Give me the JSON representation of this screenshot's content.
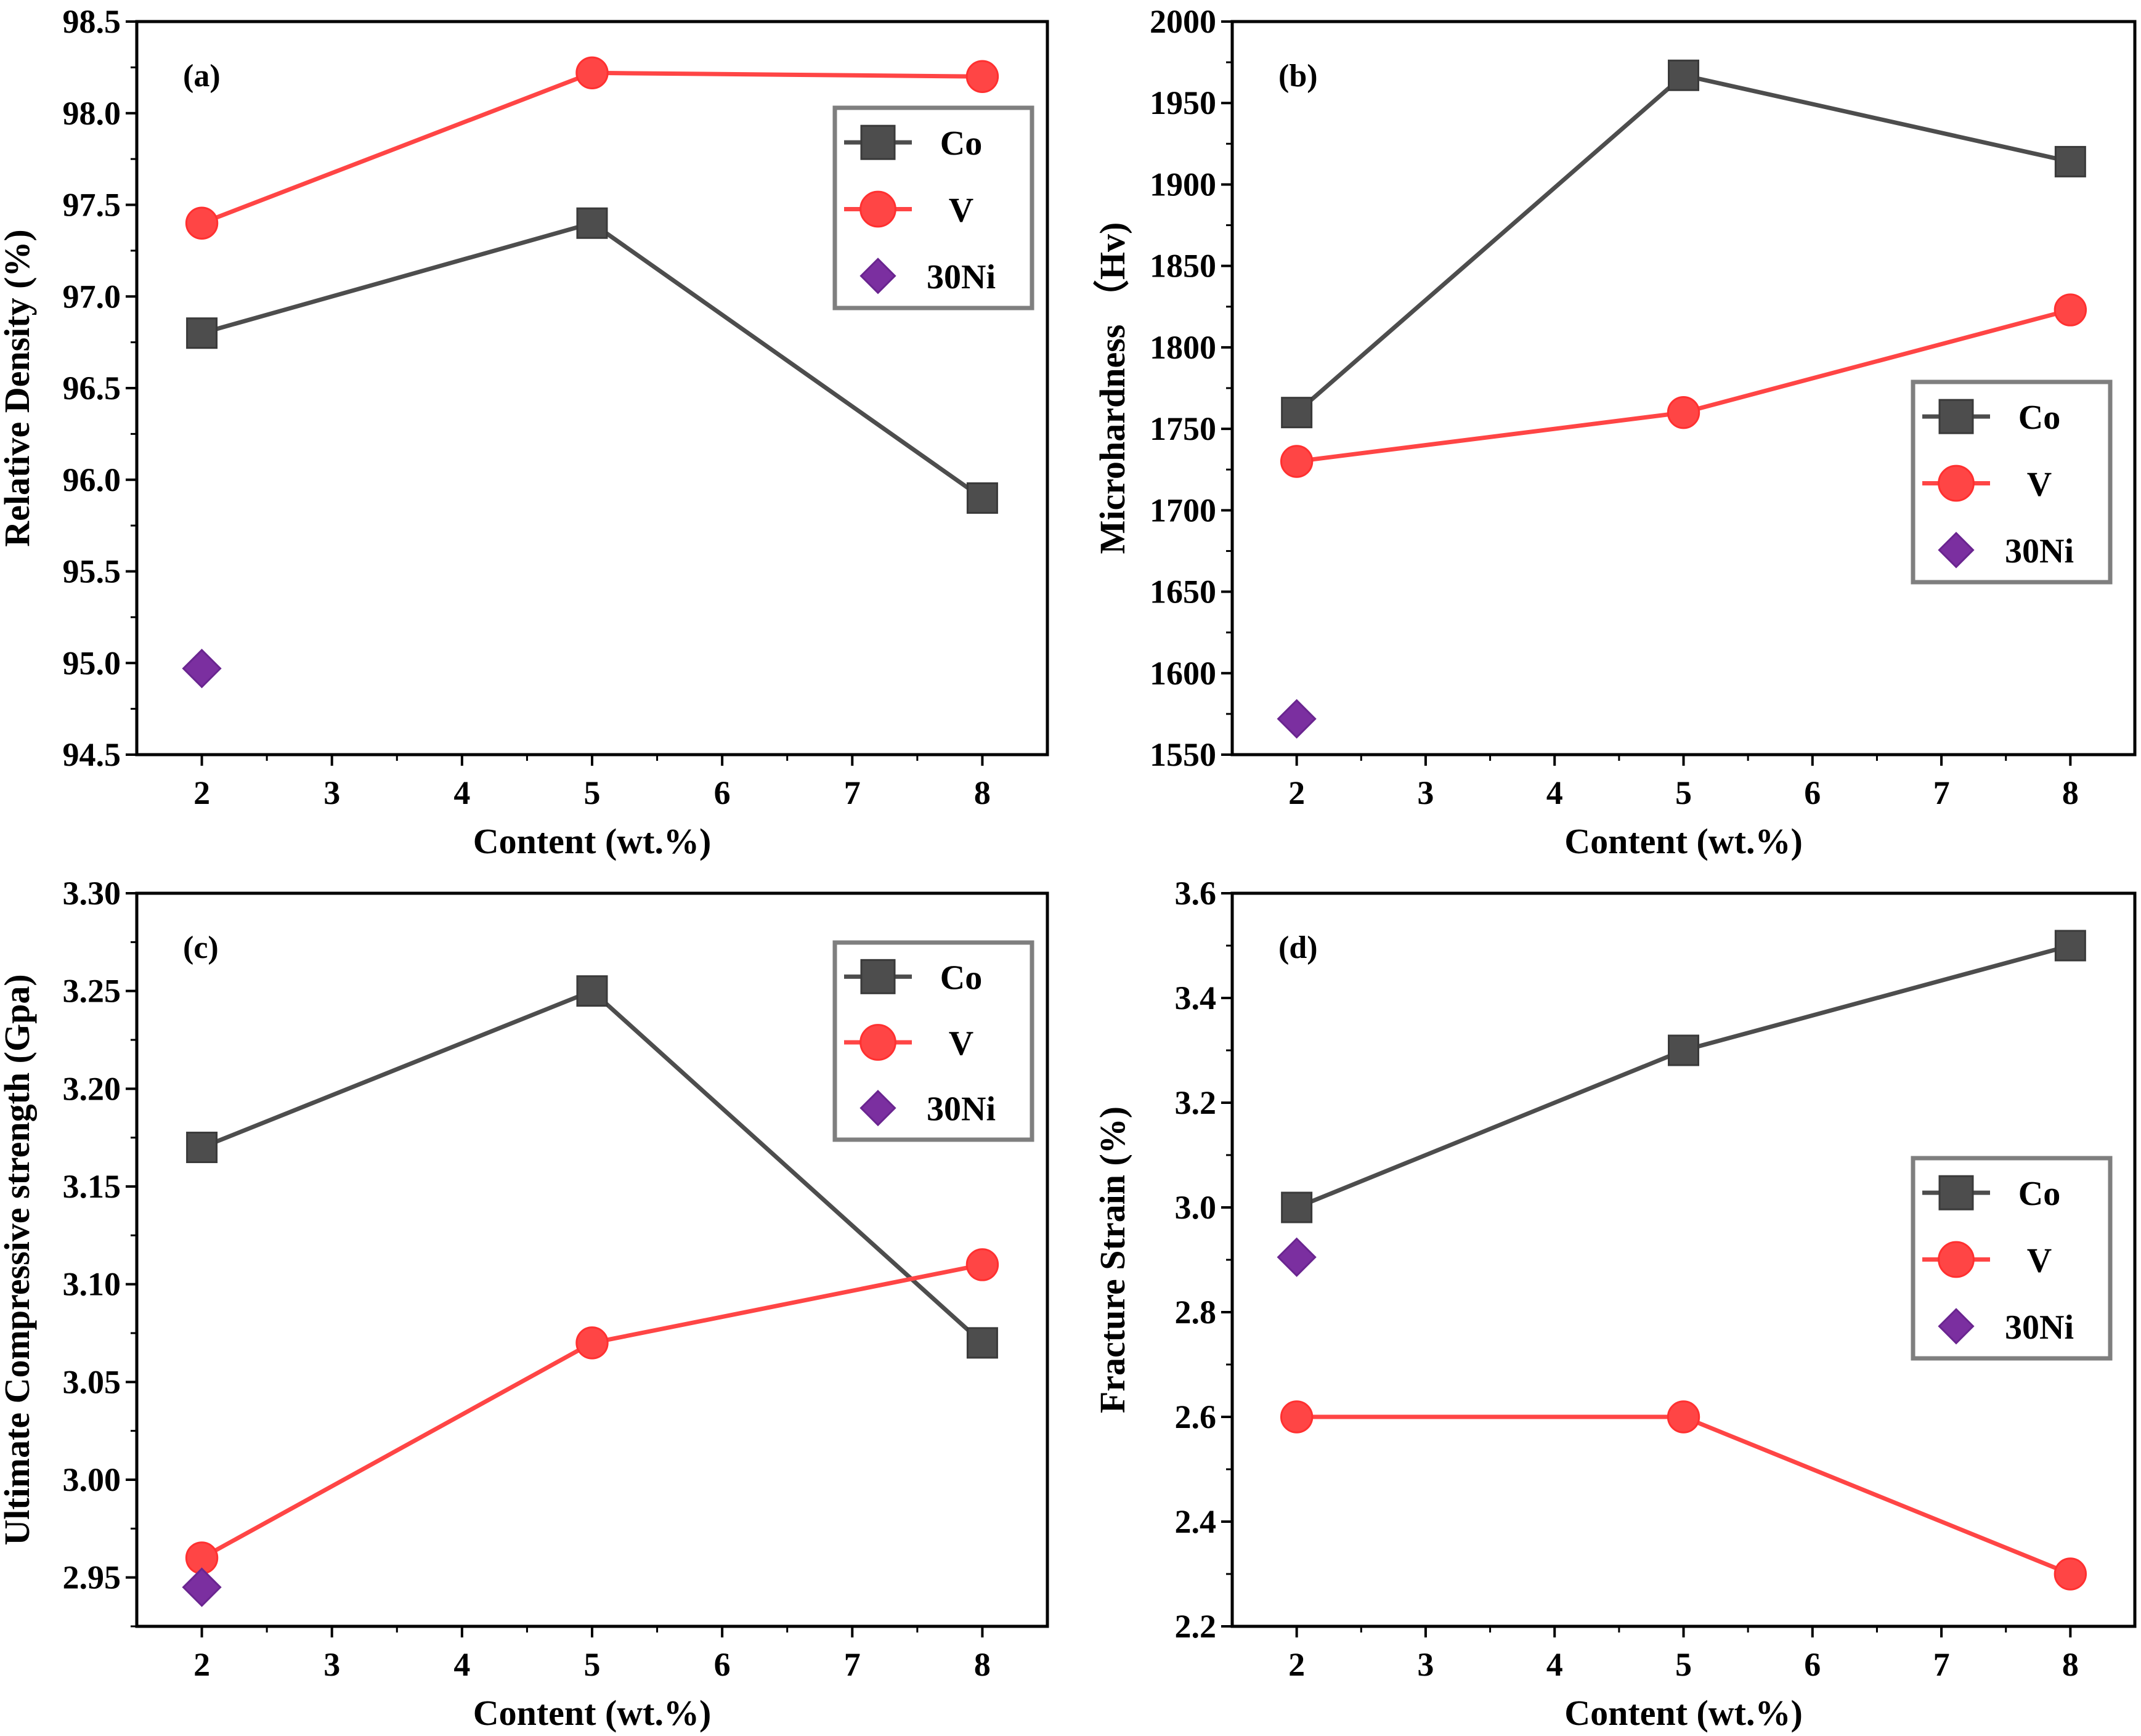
{
  "legend": [
    {
      "name": "Co",
      "color": "#4d4d4d",
      "marker": "square"
    },
    {
      "name": "V",
      "color": "#ff4545",
      "marker": "circle"
    },
    {
      "name": "30Ni",
      "color": "#7b2fa0",
      "marker": "diamond"
    }
  ],
  "chart_data": [
    {
      "type": "line",
      "panel": "(a)",
      "xlabel": "Content (wt.%)",
      "ylabel": "Relative Density (%)",
      "xlim": [
        1.5,
        8.5
      ],
      "ylim": [
        94.5,
        98.5
      ],
      "xticks": [
        2,
        3,
        4,
        5,
        6,
        7,
        8
      ],
      "yticks": [
        94.5,
        95.0,
        95.5,
        96.0,
        96.5,
        97.0,
        97.5,
        98.0,
        98.5
      ],
      "ytick_labels": [
        "94.5",
        "95.0",
        "95.5",
        "96.0",
        "96.5",
        "97.0",
        "97.5",
        "98.0",
        "98.5"
      ],
      "legend_position": "top-right",
      "series": [
        {
          "name": "Co",
          "x": [
            2,
            5,
            8
          ],
          "values": [
            96.8,
            97.4,
            95.9
          ]
        },
        {
          "name": "V",
          "x": [
            2,
            5,
            8
          ],
          "values": [
            97.4,
            98.22,
            98.2
          ]
        },
        {
          "name": "30Ni",
          "x": [
            2
          ],
          "values": [
            94.97
          ]
        }
      ]
    },
    {
      "type": "line",
      "panel": "(b)",
      "xlabel": "Content (wt.%)",
      "ylabel": "Microhardness （Hv)",
      "xlim": [
        1.5,
        8.5
      ],
      "ylim": [
        1550,
        2000
      ],
      "xticks": [
        2,
        3,
        4,
        5,
        6,
        7,
        8
      ],
      "yticks": [
        1550,
        1600,
        1650,
        1700,
        1750,
        1800,
        1850,
        1900,
        1950,
        2000
      ],
      "ytick_labels": [
        "1550",
        "1600",
        "1650",
        "1700",
        "1750",
        "1800",
        "1850",
        "1900",
        "1950",
        "2000"
      ],
      "legend_position": "center-right",
      "series": [
        {
          "name": "Co",
          "x": [
            2,
            5,
            8
          ],
          "values": [
            1760,
            1967,
            1914
          ]
        },
        {
          "name": "V",
          "x": [
            2,
            5,
            8
          ],
          "values": [
            1730,
            1760,
            1823
          ]
        },
        {
          "name": "30Ni",
          "x": [
            2
          ],
          "values": [
            1572
          ]
        }
      ]
    },
    {
      "type": "line",
      "panel": "(c)",
      "xlabel": "Content (wt.%)",
      "ylabel": "Ultimate Compressive strength (Gpa)",
      "xlim": [
        1.5,
        8.5
      ],
      "ylim": [
        2.925,
        3.3
      ],
      "xticks": [
        2,
        3,
        4,
        5,
        6,
        7,
        8
      ],
      "yticks": [
        2.95,
        3.0,
        3.05,
        3.1,
        3.15,
        3.2,
        3.25,
        3.3
      ],
      "ytick_labels": [
        "2.95",
        "3.00",
        "3.05",
        "3.10",
        "3.15",
        "3.20",
        "3.25",
        "3.30"
      ],
      "legend_position": "top-right",
      "series": [
        {
          "name": "Co",
          "x": [
            2,
            5,
            8
          ],
          "values": [
            3.17,
            3.25,
            3.07
          ]
        },
        {
          "name": "V",
          "x": [
            2,
            5,
            8
          ],
          "values": [
            2.96,
            3.07,
            3.11
          ]
        },
        {
          "name": "30Ni",
          "x": [
            2
          ],
          "values": [
            2.945
          ]
        }
      ]
    },
    {
      "type": "line",
      "panel": "(d)",
      "xlabel": "Content (wt.%)",
      "ylabel": "Fracture Strain (%)",
      "xlim": [
        1.5,
        8.5
      ],
      "ylim": [
        2.2,
        3.6
      ],
      "xticks": [
        2,
        3,
        4,
        5,
        6,
        7,
        8
      ],
      "yticks": [
        2.2,
        2.4,
        2.6,
        2.8,
        3.0,
        3.2,
        3.4,
        3.6
      ],
      "ytick_labels": [
        "2.2",
        "2.4",
        "2.6",
        "2.8",
        "3.0",
        "3.2",
        "3.4",
        "3.6"
      ],
      "legend_position": "center-right",
      "series": [
        {
          "name": "Co",
          "x": [
            2,
            5,
            8
          ],
          "values": [
            3.0,
            3.3,
            3.5
          ]
        },
        {
          "name": "V",
          "x": [
            2,
            5,
            8
          ],
          "values": [
            2.6,
            2.6,
            2.3
          ]
        },
        {
          "name": "30Ni",
          "x": [
            2
          ],
          "values": [
            2.905
          ]
        }
      ]
    }
  ]
}
